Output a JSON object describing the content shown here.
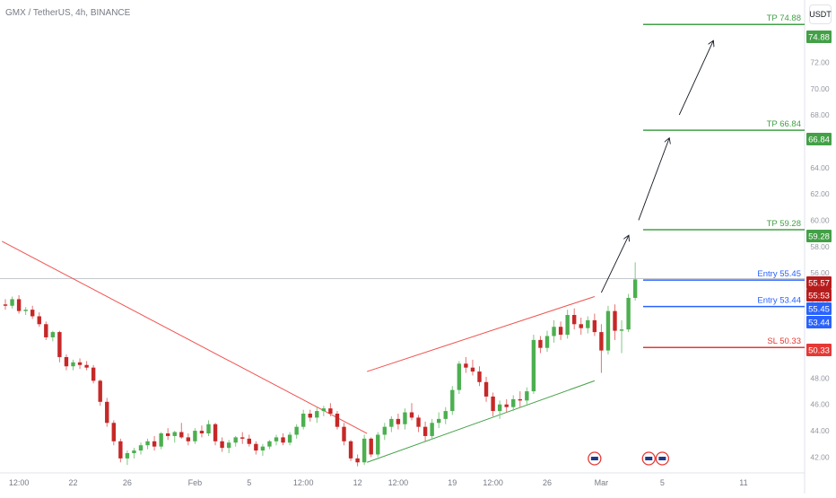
{
  "header": {
    "symbol_title": "GMX / TetherUS, 4h, BINANCE",
    "currency_label": "USDT"
  },
  "chart_data": {
    "type": "candlestick",
    "symbol": "GMX / TetherUS",
    "interval": "4h",
    "exchange": "BINANCE",
    "currency": "USDT",
    "ylim": [
      40.8,
      76.6
    ],
    "y_ticks": [
      42,
      44,
      46,
      48,
      50,
      52,
      54,
      56,
      58,
      60,
      62,
      64,
      66,
      68,
      70,
      72,
      74
    ],
    "x_ticks": [
      {
        "label": "12:00",
        "slot": 2
      },
      {
        "label": "22",
        "slot": 10
      },
      {
        "label": "26",
        "slot": 18
      },
      {
        "label": "Feb",
        "slot": 28
      },
      {
        "label": "5",
        "slot": 36
      },
      {
        "label": "12:00",
        "slot": 44
      },
      {
        "label": "12",
        "slot": 52
      },
      {
        "label": "12:00",
        "slot": 58
      },
      {
        "label": "19",
        "slot": 66
      },
      {
        "label": "12:00",
        "slot": 72
      },
      {
        "label": "26",
        "slot": 80
      },
      {
        "label": "Mar",
        "slot": 88
      },
      {
        "label": "5",
        "slot": 97
      },
      {
        "label": "11",
        "slot": 109
      }
    ],
    "x_slots": 118,
    "candles_ohlc": [
      [
        53.6,
        54.0,
        53.2,
        53.5
      ],
      [
        53.5,
        54.2,
        53.3,
        54.0
      ],
      [
        54.0,
        54.3,
        52.9,
        53.1
      ],
      [
        53.1,
        53.4,
        52.8,
        53.2
      ],
      [
        53.2,
        53.5,
        52.5,
        52.7
      ],
      [
        52.7,
        53.0,
        51.9,
        52.1
      ],
      [
        52.1,
        52.3,
        50.9,
        51.1
      ],
      [
        51.1,
        51.6,
        50.8,
        51.5
      ],
      [
        51.5,
        51.6,
        49.2,
        49.6
      ],
      [
        49.6,
        49.8,
        48.6,
        48.9
      ],
      [
        48.9,
        49.4,
        48.6,
        49.2
      ],
      [
        49.2,
        49.5,
        48.7,
        49.0
      ],
      [
        49.0,
        49.3,
        48.6,
        48.8
      ],
      [
        48.8,
        49.0,
        47.6,
        47.8
      ],
      [
        47.8,
        47.9,
        45.9,
        46.2
      ],
      [
        46.2,
        46.5,
        44.3,
        44.6
      ],
      [
        44.6,
        44.8,
        42.9,
        43.2
      ],
      [
        43.2,
        43.4,
        41.6,
        41.9
      ],
      [
        41.9,
        42.5,
        41.4,
        42.3
      ],
      [
        42.3,
        42.7,
        41.9,
        42.5
      ],
      [
        42.5,
        43.1,
        42.2,
        42.9
      ],
      [
        42.9,
        43.4,
        42.6,
        43.2
      ],
      [
        43.2,
        43.6,
        42.5,
        42.8
      ],
      [
        42.8,
        43.9,
        42.6,
        43.8
      ],
      [
        43.8,
        44.2,
        43.3,
        43.6
      ],
      [
        43.6,
        44.0,
        43.1,
        43.9
      ],
      [
        43.9,
        44.6,
        43.4,
        43.5
      ],
      [
        43.5,
        43.8,
        42.9,
        43.2
      ],
      [
        43.2,
        44.2,
        43.0,
        44.0
      ],
      [
        44.0,
        44.4,
        43.5,
        43.8
      ],
      [
        43.8,
        44.8,
        43.6,
        44.5
      ],
      [
        44.5,
        44.6,
        42.9,
        43.2
      ],
      [
        43.2,
        43.5,
        42.4,
        42.7
      ],
      [
        42.7,
        43.3,
        42.3,
        43.1
      ],
      [
        43.1,
        43.6,
        42.8,
        43.5
      ],
      [
        43.5,
        43.9,
        43.0,
        43.4
      ],
      [
        43.4,
        43.7,
        42.8,
        43.0
      ],
      [
        43.0,
        43.2,
        42.2,
        42.5
      ],
      [
        42.5,
        43.0,
        42.1,
        42.8
      ],
      [
        42.8,
        43.3,
        42.6,
        43.2
      ],
      [
        43.2,
        43.7,
        42.9,
        43.5
      ],
      [
        43.5,
        43.8,
        42.9,
        43.1
      ],
      [
        43.1,
        43.9,
        42.9,
        43.7
      ],
      [
        43.7,
        44.5,
        43.4,
        44.3
      ],
      [
        44.3,
        45.6,
        44.1,
        45.3
      ],
      [
        45.3,
        45.6,
        44.7,
        45.0
      ],
      [
        45.0,
        45.8,
        44.6,
        45.5
      ],
      [
        45.5,
        45.9,
        45.1,
        45.7
      ],
      [
        45.7,
        46.1,
        45.1,
        45.3
      ],
      [
        45.3,
        45.5,
        44.1,
        44.3
      ],
      [
        44.3,
        44.6,
        42.9,
        43.2
      ],
      [
        43.2,
        43.3,
        41.7,
        41.9
      ],
      [
        41.9,
        42.2,
        41.3,
        41.6
      ],
      [
        41.6,
        43.7,
        41.4,
        43.4
      ],
      [
        43.4,
        43.5,
        42.0,
        42.2
      ],
      [
        42.2,
        43.9,
        42.0,
        43.7
      ],
      [
        43.7,
        44.6,
        43.3,
        44.3
      ],
      [
        44.3,
        45.1,
        43.9,
        44.9
      ],
      [
        44.9,
        45.3,
        44.1,
        44.5
      ],
      [
        44.5,
        45.7,
        44.1,
        45.4
      ],
      [
        45.4,
        46.1,
        44.8,
        45.0
      ],
      [
        45.0,
        45.2,
        43.9,
        44.3
      ],
      [
        44.3,
        44.7,
        43.2,
        43.6
      ],
      [
        43.6,
        44.9,
        43.3,
        44.6
      ],
      [
        44.6,
        45.4,
        44.2,
        44.9
      ],
      [
        44.9,
        45.8,
        44.5,
        45.5
      ],
      [
        45.5,
        47.4,
        45.2,
        47.1
      ],
      [
        47.1,
        49.3,
        46.8,
        49.1
      ],
      [
        49.1,
        49.6,
        48.4,
        48.8
      ],
      [
        48.8,
        49.4,
        48.2,
        48.5
      ],
      [
        48.5,
        48.9,
        47.4,
        47.7
      ],
      [
        47.7,
        48.1,
        46.2,
        46.6
      ],
      [
        46.6,
        46.9,
        45.1,
        45.5
      ],
      [
        45.5,
        46.3,
        44.9,
        46.0
      ],
      [
        46.0,
        46.4,
        45.4,
        45.8
      ],
      [
        45.8,
        46.7,
        45.5,
        46.4
      ],
      [
        46.4,
        47.0,
        45.8,
        46.3
      ],
      [
        46.3,
        47.3,
        46.0,
        47.0
      ],
      [
        47.0,
        51.3,
        46.8,
        50.9
      ],
      [
        50.9,
        51.2,
        49.9,
        50.3
      ],
      [
        50.3,
        51.6,
        50.0,
        51.2
      ],
      [
        51.2,
        52.4,
        50.7,
        51.9
      ],
      [
        51.9,
        52.3,
        50.9,
        51.3
      ],
      [
        51.3,
        53.2,
        51.0,
        52.8
      ],
      [
        52.8,
        53.3,
        51.7,
        52.1
      ],
      [
        52.1,
        52.6,
        51.3,
        51.8
      ],
      [
        51.8,
        52.7,
        51.4,
        52.4
      ],
      [
        52.4,
        52.9,
        51.2,
        51.5
      ],
      [
        51.5,
        52.1,
        48.4,
        50.1
      ],
      [
        50.1,
        53.5,
        49.8,
        53.1
      ],
      [
        53.1,
        53.6,
        50.9,
        51.6
      ],
      [
        51.6,
        52.4,
        49.9,
        51.7
      ],
      [
        51.7,
        54.4,
        51.5,
        54.1
      ],
      [
        54.1,
        56.8,
        53.9,
        55.5
      ]
    ],
    "levels": [
      {
        "label": "TP 74.88",
        "price": 74.88,
        "color": "#43a047"
      },
      {
        "label": "TP 66.84",
        "price": 66.84,
        "color": "#43a047"
      },
      {
        "label": "TP 59.28",
        "price": 59.28,
        "color": "#43a047"
      },
      {
        "label": "Entry 55.45",
        "price": 55.45,
        "color": "#2962ff"
      },
      {
        "label": "Entry 53.44",
        "price": 53.44,
        "color": "#2962ff"
      },
      {
        "label": "SL 50.33",
        "price": 50.33,
        "color": "#e53935"
      }
    ],
    "price_badges": [
      {
        "text": "74.88",
        "bg": "#43a047"
      },
      {
        "text": "66.84",
        "bg": "#43a047"
      },
      {
        "text": "59.28",
        "bg": "#43a047"
      },
      {
        "text": "55.57",
        "bg": "#b71c1c"
      },
      {
        "text": "55:53",
        "bg": "#b71c1c"
      },
      {
        "text": "55.45",
        "bg": "#2962ff"
      },
      {
        "text": "53.44",
        "bg": "#2962ff"
      },
      {
        "text": "50.33",
        "bg": "#e53935"
      }
    ],
    "trendlines": [
      {
        "name": "down-trendline",
        "from": [
          -0.5,
          58.4
        ],
        "to": [
          53.4,
          43.8
        ],
        "color": "#ef5350"
      },
      {
        "name": "channel-top",
        "from": [
          53.4,
          48.5
        ],
        "to": [
          87,
          54.2
        ],
        "color": "#ef5350"
      },
      {
        "name": "channel-bottom",
        "from": [
          53.4,
          41.6
        ],
        "to": [
          87,
          47.8
        ],
        "color": "#43a047"
      }
    ],
    "projection_arrows": [
      {
        "from": [
          88,
          54.5
        ],
        "to": [
          92,
          58.8
        ]
      },
      {
        "from": [
          93.5,
          60.0
        ],
        "to": [
          98,
          66.2
        ]
      },
      {
        "from": [
          99.5,
          68.0
        ],
        "to": [
          104.5,
          73.6
        ]
      }
    ],
    "last_price_line": 55.57,
    "event_markers_slots": [
      87,
      95,
      97
    ],
    "colors": {
      "up": "#26a69a",
      "down": "#ef5350",
      "up_body": "#4caf50",
      "down_body": "#c62828"
    }
  }
}
